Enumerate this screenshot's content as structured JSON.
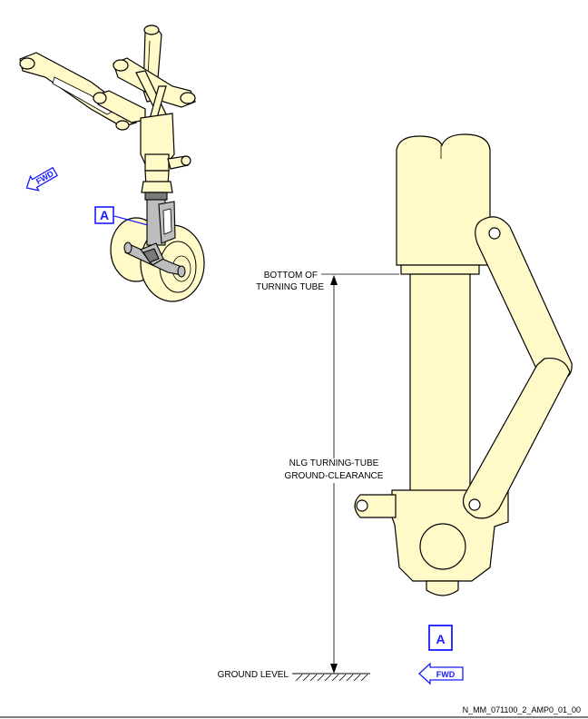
{
  "labels": {
    "bottom_of_turning_tube": [
      "BOTTOM OF",
      "TURNING TUBE"
    ],
    "clearance": [
      "NLG TURNING-TUBE",
      "GROUND-CLEARANCE"
    ],
    "ground_level": "GROUND LEVEL"
  },
  "fwd_arrow_text": "FWD",
  "callout_letter": "A",
  "figure_reference": "N_MM_071100_2_AMP0_01_00",
  "colors": {
    "part_fill": "#fffac8",
    "callout_blue": "#1a1aff",
    "highlight_gray": "#bdbdbd"
  }
}
